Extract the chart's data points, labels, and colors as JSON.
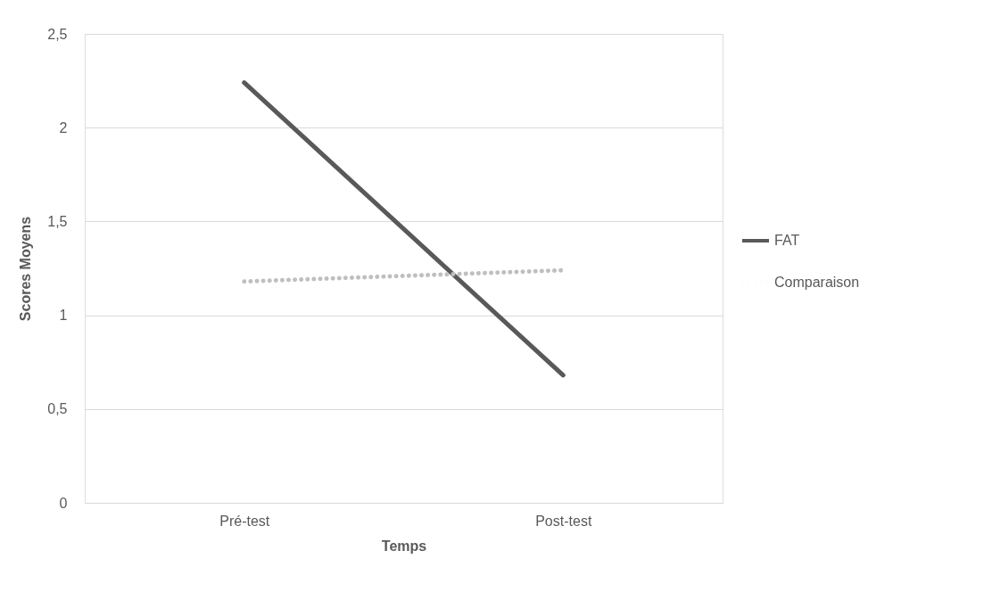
{
  "chart_data": {
    "type": "line",
    "xlabel": "Temps",
    "ylabel": "Scores Moyens",
    "categories": [
      "Pré-test",
      "Post-test"
    ],
    "series": [
      {
        "name": "FAT",
        "color": "#595959",
        "line_style": "solid",
        "values": [
          2.24,
          0.68
        ]
      },
      {
        "name": "Comparaison",
        "color": "#bfbfbf",
        "line_style": "dotted",
        "values": [
          1.18,
          1.24
        ]
      }
    ],
    "ylim": [
      0,
      2.5
    ],
    "yticks": [
      0,
      {
        "value": 0.5,
        "label": "0,5"
      },
      1,
      {
        "value": 1.5,
        "label": "1,5"
      },
      2,
      {
        "value": 2.5,
        "label": "2,5"
      }
    ],
    "grid": "y",
    "legend": "right",
    "marker": "none"
  }
}
